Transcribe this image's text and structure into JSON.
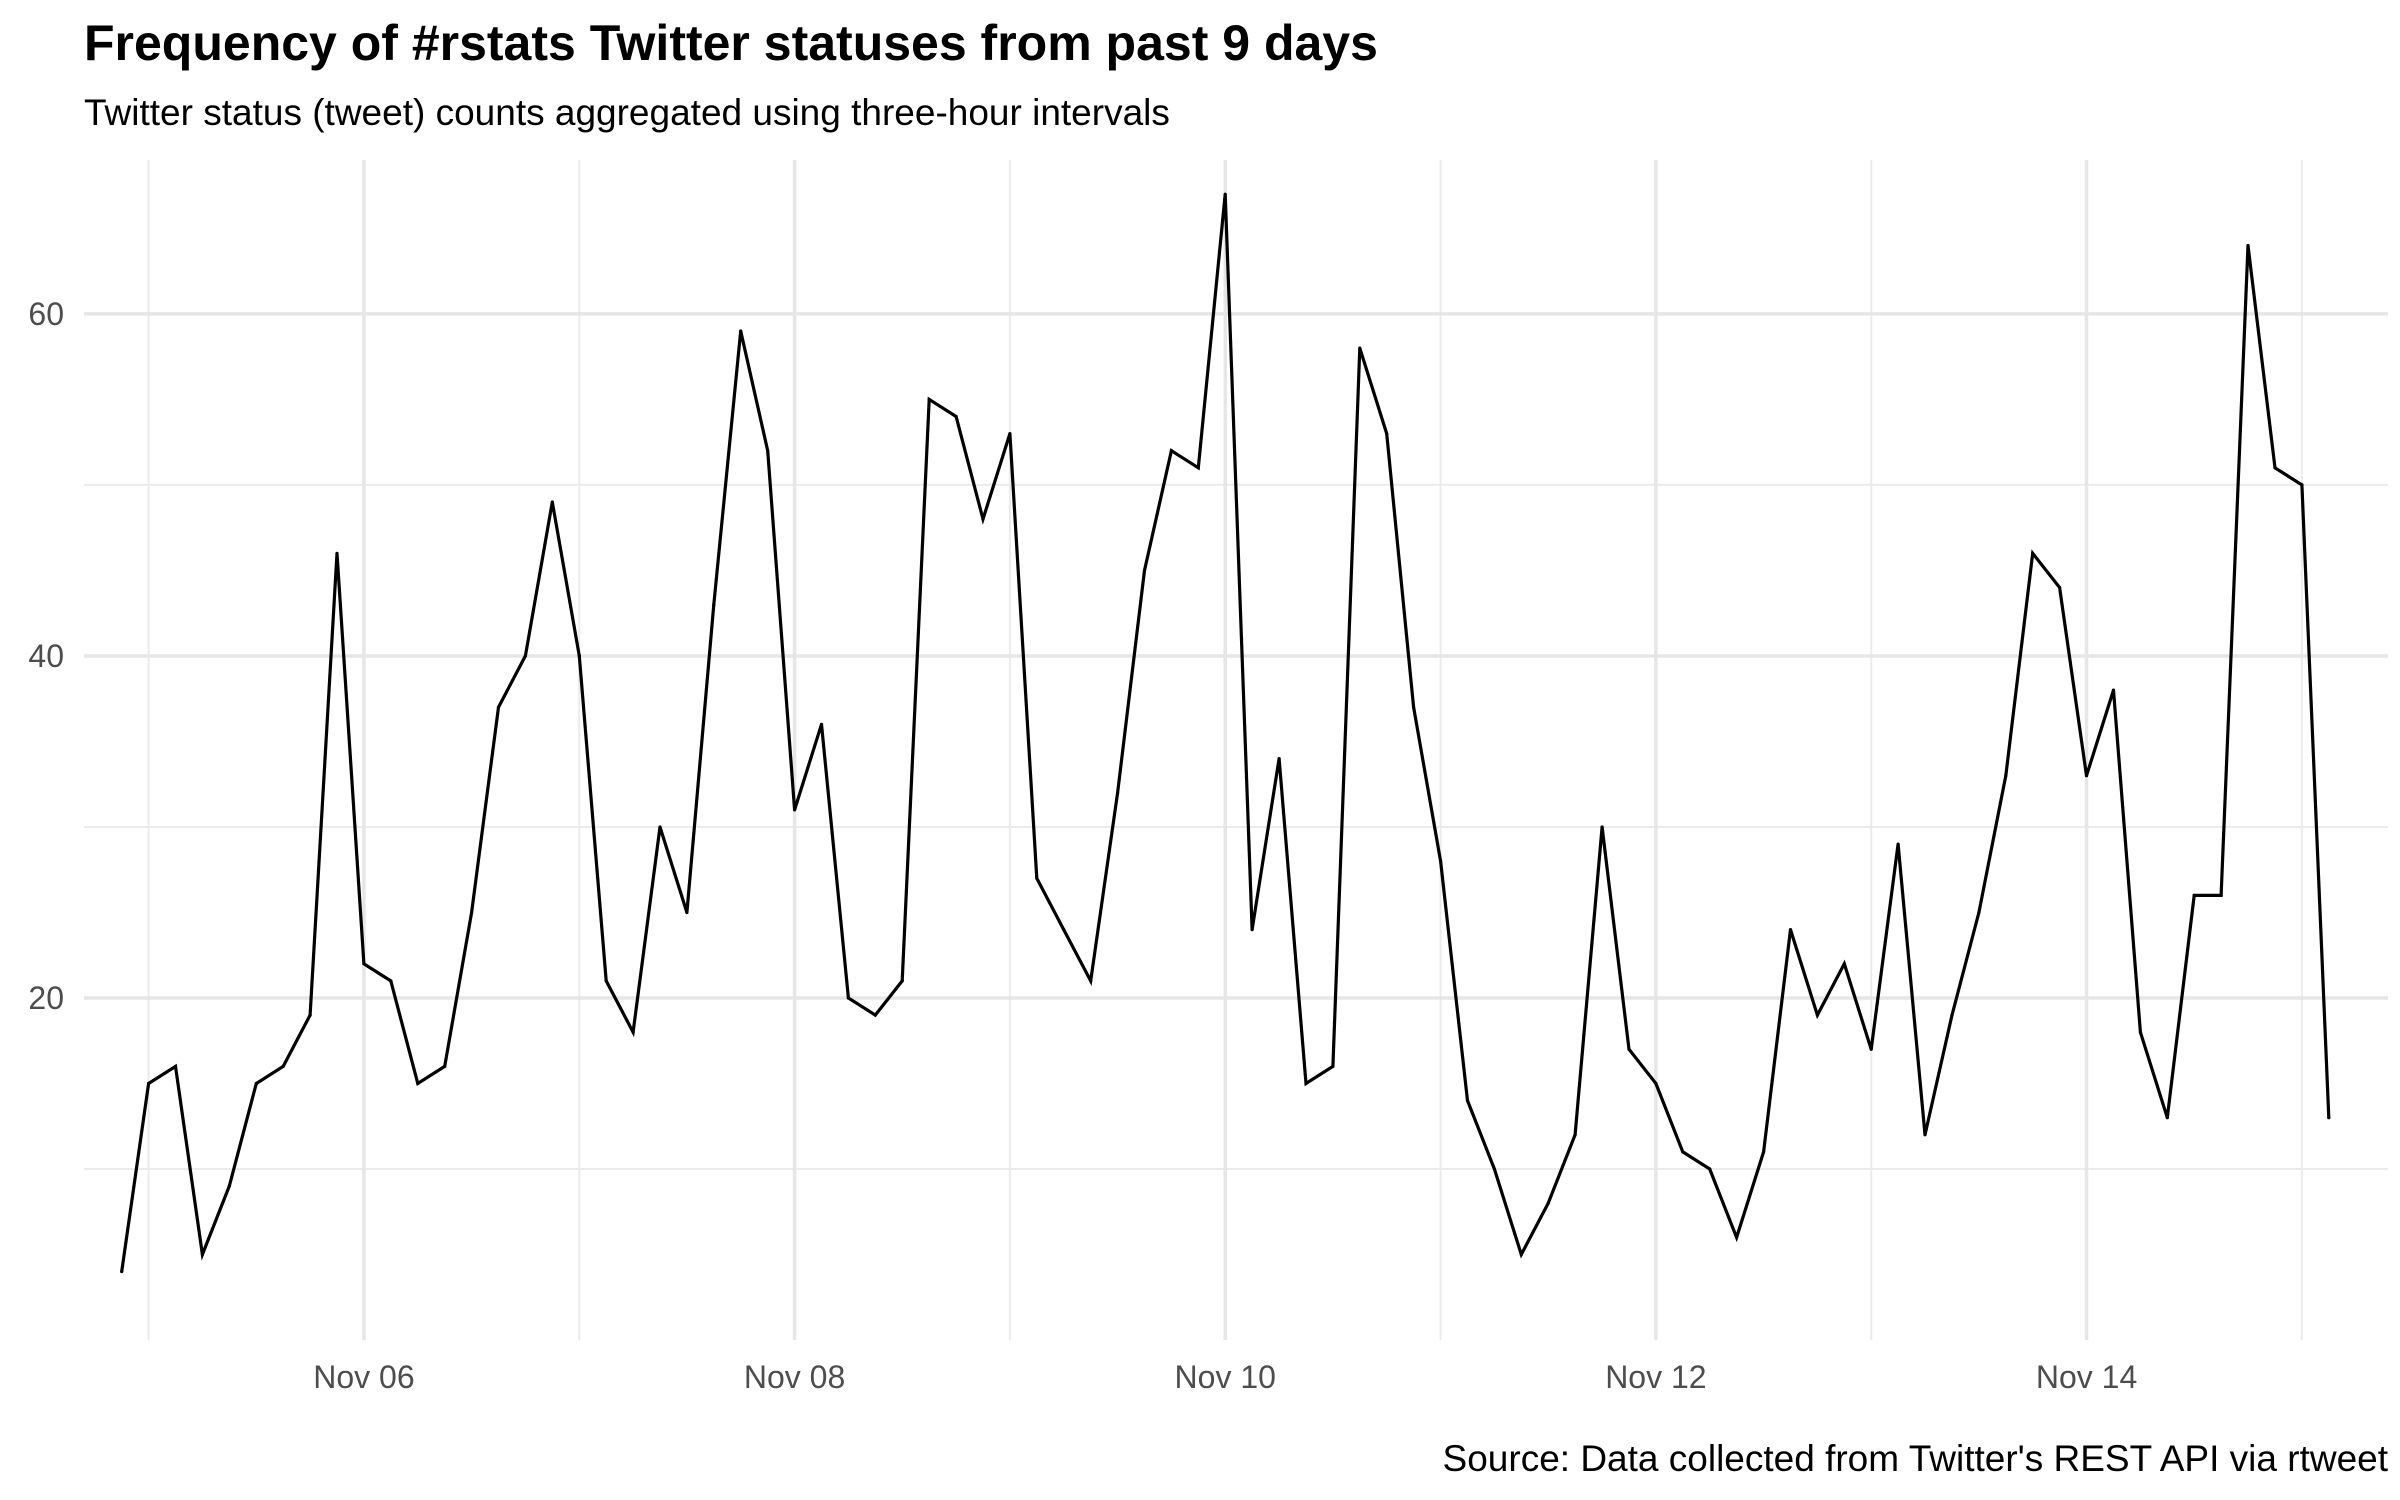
{
  "chart_data": {
    "type": "line",
    "title": "Frequency of #rstats Twitter statuses from past 9 days",
    "subtitle": "Twitter status (tweet) counts aggregated using three-hour intervals",
    "caption": "Source: Data collected from Twitter's REST API via rtweet",
    "xlabel": "",
    "ylabel": "",
    "x_unit": "days since Nov 06 00:00",
    "xlim": [
      -1.3,
      9.4
    ],
    "ylim": [
      0,
      69
    ],
    "x_ticks": [
      {
        "value": 0,
        "label": "Nov 06"
      },
      {
        "value": 2,
        "label": "Nov 08"
      },
      {
        "value": 4,
        "label": "Nov 10"
      },
      {
        "value": 6,
        "label": "Nov 12"
      },
      {
        "value": 8,
        "label": "Nov 14"
      }
    ],
    "x_minor_ticks": [
      -1,
      1,
      3,
      5,
      7,
      9
    ],
    "y_ticks": [
      20,
      40,
      60
    ],
    "y_minor_ticks": [
      10,
      30,
      50
    ],
    "grid": true,
    "series": [
      {
        "name": "statuses",
        "color": "#000000",
        "start": -1.125,
        "interval": 0.125,
        "values": [
          4,
          15,
          16,
          5,
          9,
          15,
          16,
          19,
          46,
          22,
          21,
          15,
          16,
          25,
          37,
          40,
          49,
          40,
          21,
          18,
          30,
          25,
          43,
          59,
          52,
          31,
          36,
          20,
          19,
          21,
          55,
          54,
          48,
          53,
          27,
          24,
          21,
          32,
          45,
          52,
          51,
          67,
          24,
          34,
          15,
          16,
          58,
          53,
          37,
          28,
          14,
          10,
          5,
          8,
          12,
          30,
          17,
          15,
          11,
          10,
          6,
          11,
          24,
          19,
          22,
          17,
          29,
          12,
          19,
          25,
          33,
          46,
          44,
          33,
          38,
          18,
          13,
          26,
          26,
          64,
          51,
          50,
          13
        ]
      }
    ]
  }
}
